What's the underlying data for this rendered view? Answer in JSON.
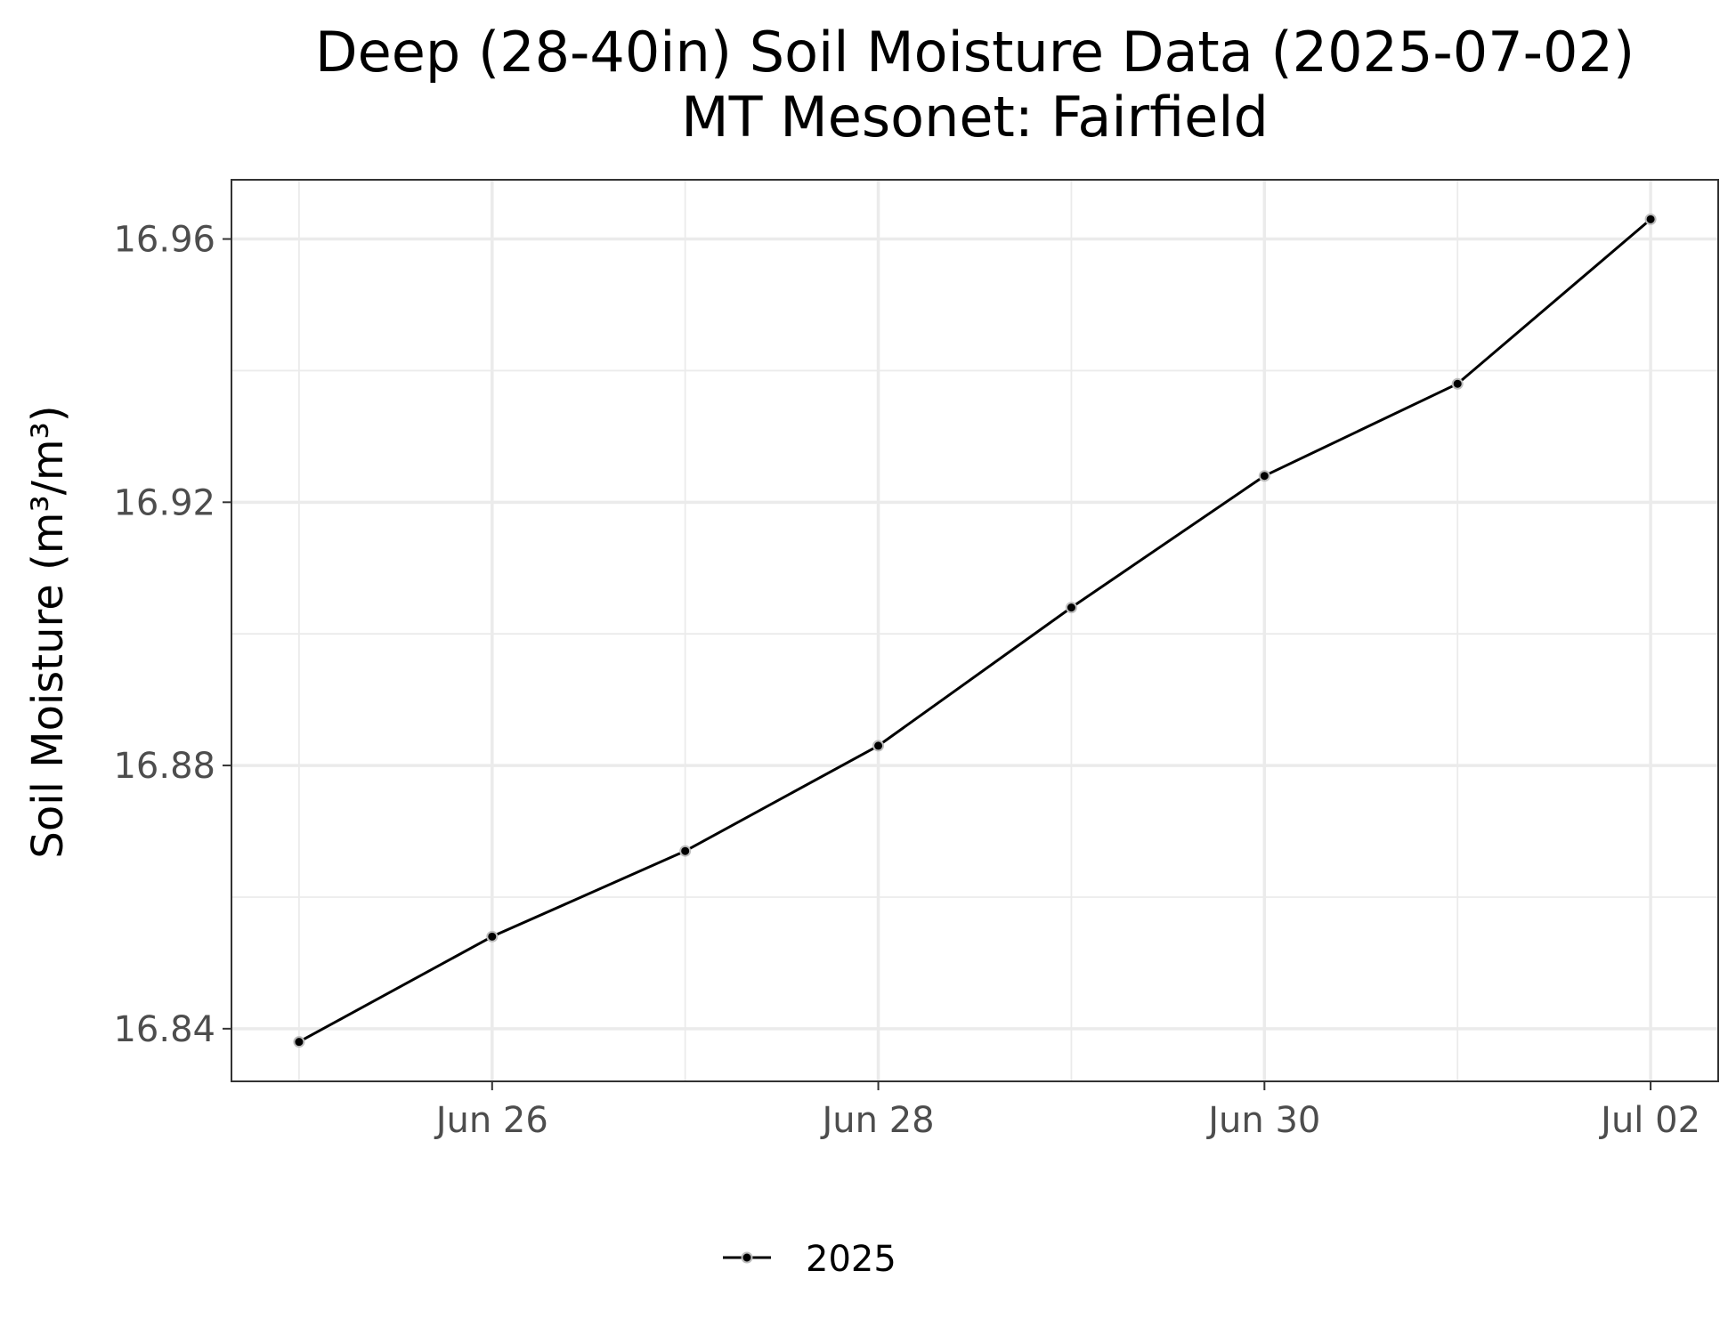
{
  "chart_data": {
    "type": "line",
    "title": "Deep (28-40in) Soil Moisture Data (2025-07-02)",
    "subtitle": "MT Mesonet: Fairfield",
    "xlabel": "",
    "ylabel": "Soil Moisture (m³/m³)",
    "x": [
      "2025-06-25",
      "2025-06-26",
      "2025-06-27",
      "2025-06-28",
      "2025-06-29",
      "2025-06-30",
      "2025-07-01",
      "2025-07-02"
    ],
    "x_ticks": [
      "Jun 26",
      "Jun 28",
      "Jun 30",
      "Jul 02"
    ],
    "y_ticks": [
      "16.84",
      "16.88",
      "16.92",
      "16.96"
    ],
    "ylim": [
      16.832,
      16.969
    ],
    "grid": true,
    "legend_position": "bottom",
    "series": [
      {
        "name": "2025",
        "color": "#000000",
        "values": [
          16.838,
          16.854,
          16.867,
          16.883,
          16.904,
          16.924,
          16.938,
          16.963
        ]
      }
    ]
  }
}
